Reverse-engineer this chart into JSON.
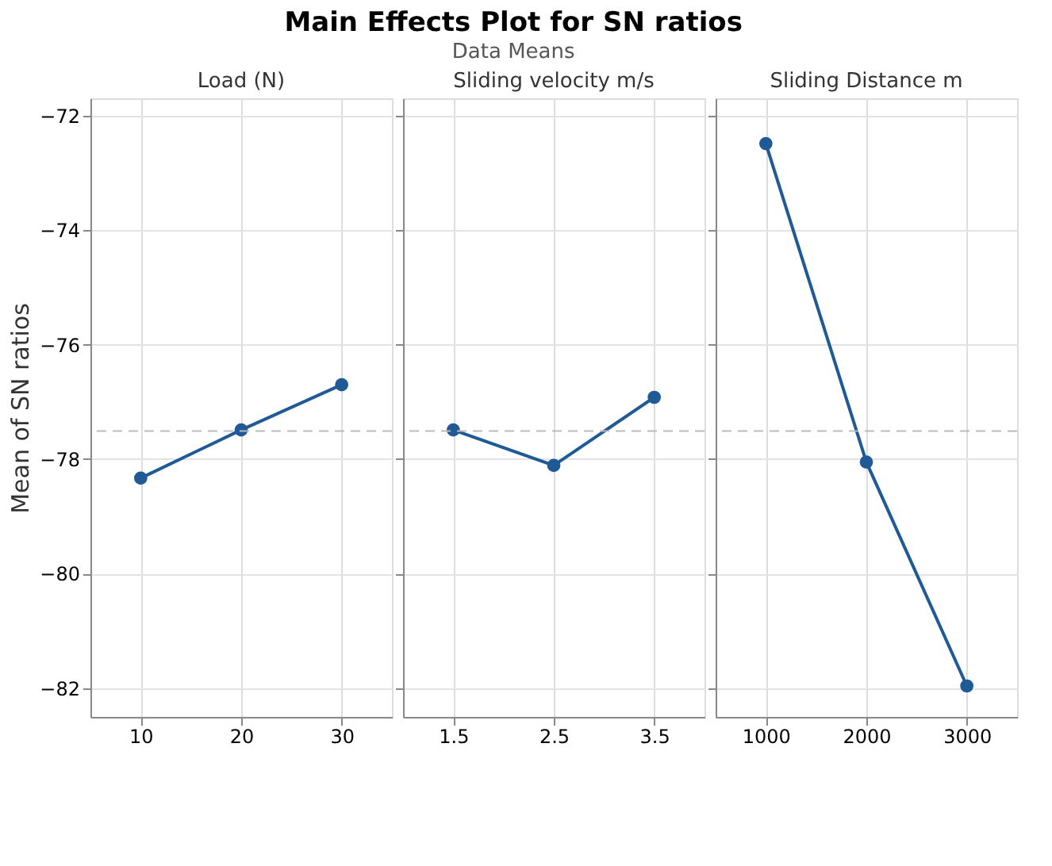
{
  "chart_data": [
    {
      "type": "other",
      "title": "Main Effects Plot for SN ratios",
      "subtitle": "Data Means"
    },
    {
      "type": "line",
      "title": "Load (N)",
      "ylabel": "Mean of SN ratios",
      "categories": [
        "10",
        "20",
        "30"
      ],
      "series": [
        {
          "color": "#1f5a96",
          "values": [
            -78.33,
            -77.49,
            -76.7
          ]
        }
      ],
      "ylim": [
        -82.5,
        -71.7
      ],
      "yticks": [
        -82,
        -80,
        -78,
        -76,
        -74,
        -72
      ],
      "grid": true,
      "marker": "circle",
      "ref_lines": [
        {
          "axis": "y",
          "value": -77.51,
          "color": "#bbbbbb",
          "line_style": "dashed"
        }
      ]
    },
    {
      "type": "line",
      "title": "Sliding velocity m/s",
      "categories": [
        "1.5",
        "2.5",
        "3.5"
      ],
      "series": [
        {
          "color": "#1f5a96",
          "values": [
            -77.49,
            -78.11,
            -76.92
          ]
        }
      ],
      "ylim": [
        -82.5,
        -71.7
      ],
      "yticks": [
        -82,
        -80,
        -78,
        -76,
        -74,
        -72
      ],
      "grid": true,
      "marker": "circle",
      "tick_labels": "x",
      "ref_lines": [
        {
          "axis": "y",
          "value": -77.51,
          "color": "#bbbbbb",
          "line_style": "dashed"
        }
      ]
    },
    {
      "type": "line",
      "title": "Sliding Distance m",
      "categories": [
        "1000",
        "2000",
        "3000"
      ],
      "series": [
        {
          "color": "#1f5a96",
          "values": [
            -72.49,
            -78.05,
            -81.96
          ]
        }
      ],
      "ylim": [
        -82.5,
        -71.7
      ],
      "yticks": [
        -82,
        -80,
        -78,
        -76,
        -74,
        -72
      ],
      "grid": true,
      "marker": "circle",
      "tick_labels": "x",
      "ref_lines": [
        {
          "axis": "y",
          "value": -77.51,
          "color": "#bbbbbb",
          "line_style": "dashed"
        }
      ]
    }
  ]
}
